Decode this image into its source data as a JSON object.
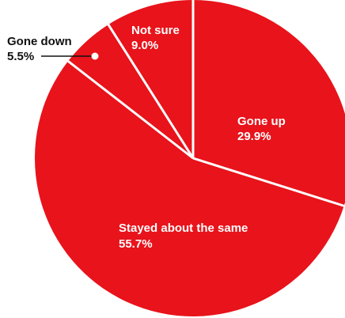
{
  "chart_data": {
    "type": "pie",
    "title": "",
    "slices": [
      {
        "label": "Gone up",
        "value": 29.9,
        "value_label": "29.9%"
      },
      {
        "label": "Stayed about the same",
        "value": 55.7,
        "value_label": "55.7%"
      },
      {
        "label": "Gone down",
        "value": 5.5,
        "value_label": "5.5%"
      },
      {
        "label": "Not sure",
        "value": 9.0,
        "value_label": "9.0%"
      }
    ],
    "start_angle_deg": 0,
    "direction": "clockwise",
    "colors": {
      "slice": "#e8131b",
      "separator": "#ffffff",
      "callout_line": "#111111"
    }
  }
}
